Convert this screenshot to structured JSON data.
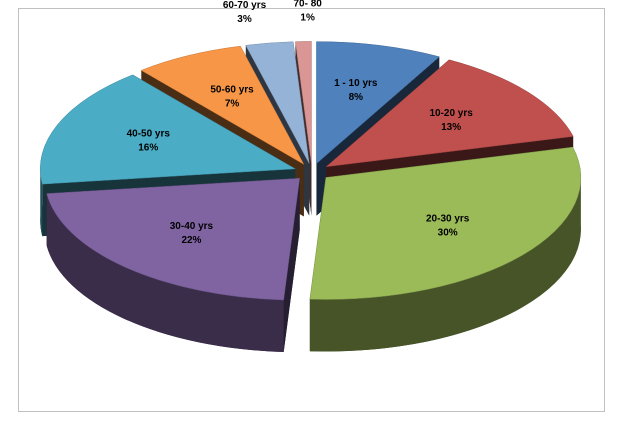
{
  "chart_data": {
    "type": "pie",
    "three_d": true,
    "categories": [
      "1 - 10 yrs",
      "10-20 yrs",
      "20-30 yrs",
      "30-40 yrs",
      "40-50 yrs",
      "50-60 yrs",
      "60-70 yrs",
      "70- 80"
    ],
    "values": [
      8,
      13,
      30,
      22,
      16,
      7,
      3,
      1
    ],
    "value_labels": [
      "8%",
      "13%",
      "30%",
      "22%",
      "16%",
      "7%",
      "3%",
      "1%"
    ],
    "colors": [
      "#4f81bd",
      "#c0504d",
      "#9bbb59",
      "#8064a2",
      "#4bacc6",
      "#f79646",
      "#95b3d7",
      "#d99694"
    ]
  }
}
